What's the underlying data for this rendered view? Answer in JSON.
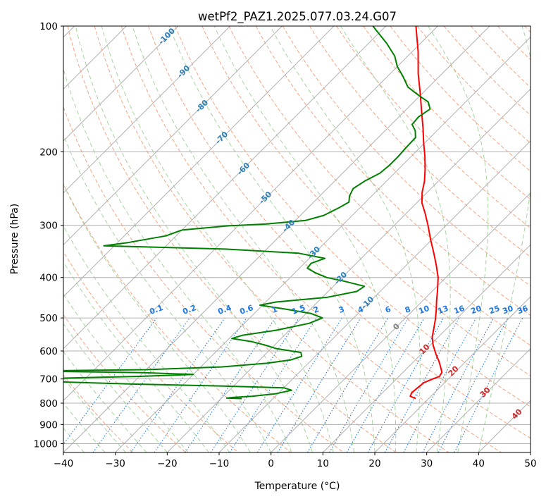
{
  "chart_data": {
    "type": "line",
    "title": "wetPf2_PAZ1.2025.077.03.24.G07",
    "xlabel": "Temperature (°C)",
    "ylabel": "Pressure (hPa)",
    "xlim": [
      -40,
      50
    ],
    "ylim": [
      1050,
      100
    ],
    "y_scale": "log",
    "skew": true,
    "grid": true,
    "x_ticks": [
      -40,
      -30,
      -20,
      -10,
      0,
      10,
      20,
      30,
      40,
      50
    ],
    "y_ticks": [
      100,
      200,
      300,
      400,
      500,
      600,
      700,
      800,
      900,
      1000
    ],
    "series": [
      {
        "color": "#ff0000",
        "style": "temperature",
        "points": [
          [
            780,
            17.5
          ],
          [
            770,
            16.0
          ],
          [
            755,
            15.6
          ],
          [
            735,
            15.8
          ],
          [
            715,
            16.0
          ],
          [
            700,
            17.0
          ],
          [
            690,
            17.8
          ],
          [
            675,
            17.5
          ],
          [
            655,
            16.2
          ],
          [
            635,
            14.8
          ],
          [
            610,
            12.8
          ],
          [
            580,
            10.5
          ],
          [
            555,
            8.8
          ],
          [
            530,
            7.5
          ],
          [
            505,
            6.1
          ],
          [
            480,
            4.5
          ],
          [
            455,
            2.7
          ],
          [
            430,
            0.9
          ],
          [
            400,
            -1.5
          ],
          [
            375,
            -4.1
          ],
          [
            350,
            -7.0
          ],
          [
            325,
            -10.2
          ],
          [
            300,
            -13.5
          ],
          [
            280,
            -16.5
          ],
          [
            265,
            -19.0
          ],
          [
            250,
            -21.0
          ],
          [
            235,
            -22.7
          ],
          [
            220,
            -24.9
          ],
          [
            205,
            -27.4
          ],
          [
            190,
            -30.3
          ],
          [
            175,
            -33.3
          ],
          [
            160,
            -36.7
          ],
          [
            145,
            -40.4
          ],
          [
            130,
            -44.6
          ],
          [
            115,
            -48.9
          ],
          [
            100,
            -54.2
          ]
        ]
      },
      {
        "color": "#008000",
        "style": "dewpoint",
        "points": [
          [
            780,
            -16.0
          ],
          [
            778,
            -19.0
          ],
          [
            775,
            -18.0
          ],
          [
            770,
            -14.5
          ],
          [
            760,
            -10.5
          ],
          [
            745,
            -8.0
          ],
          [
            735,
            -10.0
          ],
          [
            728,
            -22.0
          ],
          [
            720,
            -40.0
          ],
          [
            705,
            -65.0
          ],
          [
            700,
            -70.0
          ],
          [
            697,
            -55.0
          ],
          [
            690,
            -40.0
          ],
          [
            683,
            -30.0
          ],
          [
            676,
            -40.0
          ],
          [
            670,
            -62.0
          ],
          [
            665,
            -40.0
          ],
          [
            655,
            -26.0
          ],
          [
            642,
            -18.0
          ],
          [
            630,
            -14.0
          ],
          [
            618,
            -12.6
          ],
          [
            605,
            -13.5
          ],
          [
            592,
            -19.0
          ],
          [
            580,
            -22.0
          ],
          [
            570,
            -25.0
          ],
          [
            560,
            -29.5
          ],
          [
            550,
            -28.0
          ],
          [
            535,
            -22.5
          ],
          [
            515,
            -17.5
          ],
          [
            500,
            -16.0
          ],
          [
            488,
            -19.0
          ],
          [
            476,
            -25.0
          ],
          [
            466,
            -30.5
          ],
          [
            458,
            -28.0
          ],
          [
            446,
            -19.0
          ],
          [
            432,
            -14.5
          ],
          [
            420,
            -14.0
          ],
          [
            408,
            -19.0
          ],
          [
            400,
            -23.0
          ],
          [
            390,
            -26.0
          ],
          [
            380,
            -28.5
          ],
          [
            370,
            -28.7
          ],
          [
            360,
            -27.0
          ],
          [
            350,
            -33.0
          ],
          [
            342,
            -48.0
          ],
          [
            336,
            -72.0
          ],
          [
            330,
            -68.0
          ],
          [
            318,
            -62.0
          ],
          [
            308,
            -60.0
          ],
          [
            301,
            -52.0
          ],
          [
            298,
            -45.0
          ],
          [
            292,
            -38.0
          ],
          [
            284,
            -35.5
          ],
          [
            272,
            -34.0
          ],
          [
            264,
            -33.2
          ],
          [
            255,
            -34.3
          ],
          [
            245,
            -35.0
          ],
          [
            235,
            -34.2
          ],
          [
            225,
            -32.8
          ],
          [
            215,
            -32.5
          ],
          [
            205,
            -32.5
          ],
          [
            195,
            -32.7
          ],
          [
            185,
            -32.8
          ],
          [
            178,
            -34.2
          ],
          [
            172,
            -36.0
          ],
          [
            165,
            -36.2
          ],
          [
            158,
            -35.5
          ],
          [
            152,
            -37.2
          ],
          [
            146,
            -40.6
          ],
          [
            140,
            -44.0
          ],
          [
            132,
            -47.0
          ],
          [
            125,
            -50.0
          ],
          [
            118,
            -52.5
          ],
          [
            110,
            -56.5
          ],
          [
            100,
            -62.5
          ]
        ]
      }
    ],
    "dry_adiabats_C": [
      -100,
      -90,
      -80,
      -70,
      -60,
      -50,
      -40,
      -30,
      -20,
      -10,
      0,
      10,
      20,
      30,
      40
    ],
    "dry_adiabat_labels": [
      "-100",
      "-90",
      "-80",
      "-70",
      "-60",
      "-50",
      "-40",
      "-30",
      "-20",
      "-10"
    ],
    "moist_adiabat_labels": [
      "0",
      "10",
      "20",
      "30",
      "40"
    ],
    "mixing_ratios_gkg": [
      0.1,
      0.2,
      0.4,
      0.6,
      1,
      1.5,
      2,
      3,
      4,
      6,
      8,
      10,
      13,
      16,
      20,
      25,
      30,
      36
    ],
    "mixing_ratio_labels": [
      "0.1",
      "0.2",
      "0.4",
      "0.6",
      "1",
      "1.5",
      "2",
      "3",
      "4",
      "6",
      "8",
      "10",
      "13",
      "16",
      "20",
      "25",
      "30",
      "36"
    ],
    "colors": {
      "temperature": "#ff0000",
      "dewpoint": "#008000",
      "dry_adiabat": "#f4a582",
      "moist_adiabat": "#a6d49f",
      "mixing_ratio": "#1f77e4",
      "dry_label": "#2c7fb8",
      "moist_label": "#d62728",
      "isotherm": "#b0b0b0"
    }
  }
}
